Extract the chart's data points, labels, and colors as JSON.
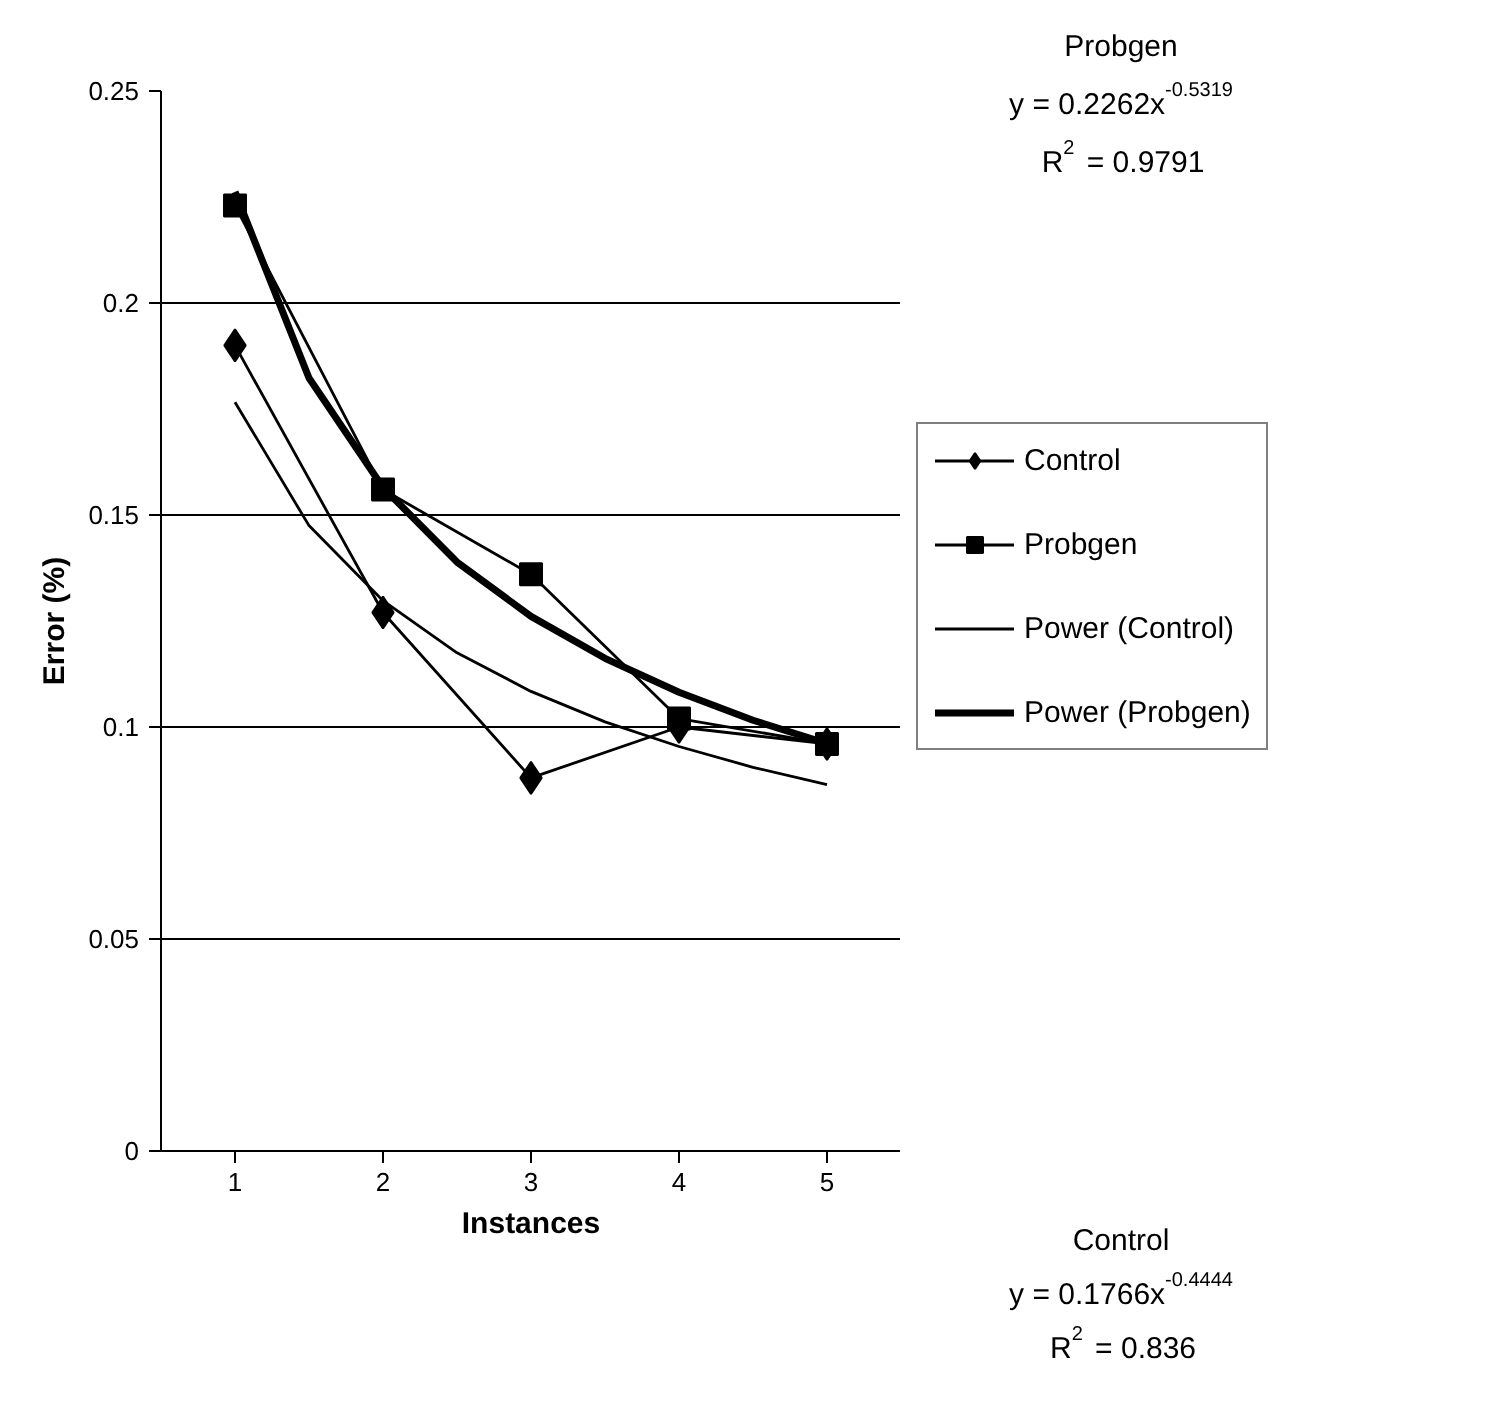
{
  "chart_data": {
    "type": "line",
    "xlabel": "Instances",
    "ylabel": "Error (%)",
    "xlim": [
      0.5,
      5.5
    ],
    "xticks": [
      1,
      2,
      3,
      4,
      5
    ],
    "ylim": [
      0,
      0.25
    ],
    "yticks": [
      0,
      0.05,
      0.1,
      0.15,
      0.2,
      0.25
    ],
    "grid": "y",
    "legend": "right",
    "series": [
      {
        "name": "Control",
        "color": "#000000",
        "marker": "diamond",
        "x": [
          1,
          2,
          3,
          4,
          5
        ],
        "values": [
          0.19,
          0.127,
          0.088,
          0.1,
          0.096
        ]
      },
      {
        "name": "Probgen",
        "color": "#000000",
        "marker": "square",
        "x": [
          1,
          2,
          3,
          4,
          5
        ],
        "values": [
          0.223,
          0.156,
          0.136,
          0.102,
          0.096
        ]
      },
      {
        "name": "Power (Control)",
        "color": "#000000",
        "marker": "none",
        "x": [
          1,
          1.5,
          2,
          2.5,
          3,
          3.5,
          4,
          4.5,
          5
        ],
        "values": [
          0.1766,
          0.1475,
          0.1298,
          0.1175,
          0.1084,
          0.1012,
          0.0954,
          0.0905,
          0.0864
        ]
      },
      {
        "name": "Power (Probgen)",
        "color": "#000000",
        "marker": "none",
        "x": [
          1,
          1.5,
          2,
          2.5,
          3,
          3.5,
          4,
          4.5,
          5
        ],
        "values": [
          0.2262,
          0.1823,
          0.1565,
          0.1389,
          0.1261,
          0.1162,
          0.1082,
          0.1016,
          0.0961
        ]
      }
    ],
    "annotations": [
      "Probgen",
      "y = 0.2262x$^{-0.5319}$",
      "R$^{2}$ = 0.9791",
      "Control",
      "y = 0.1766x$^{-0.4444}$",
      "R$^{2}$ = 0.836"
    ]
  }
}
